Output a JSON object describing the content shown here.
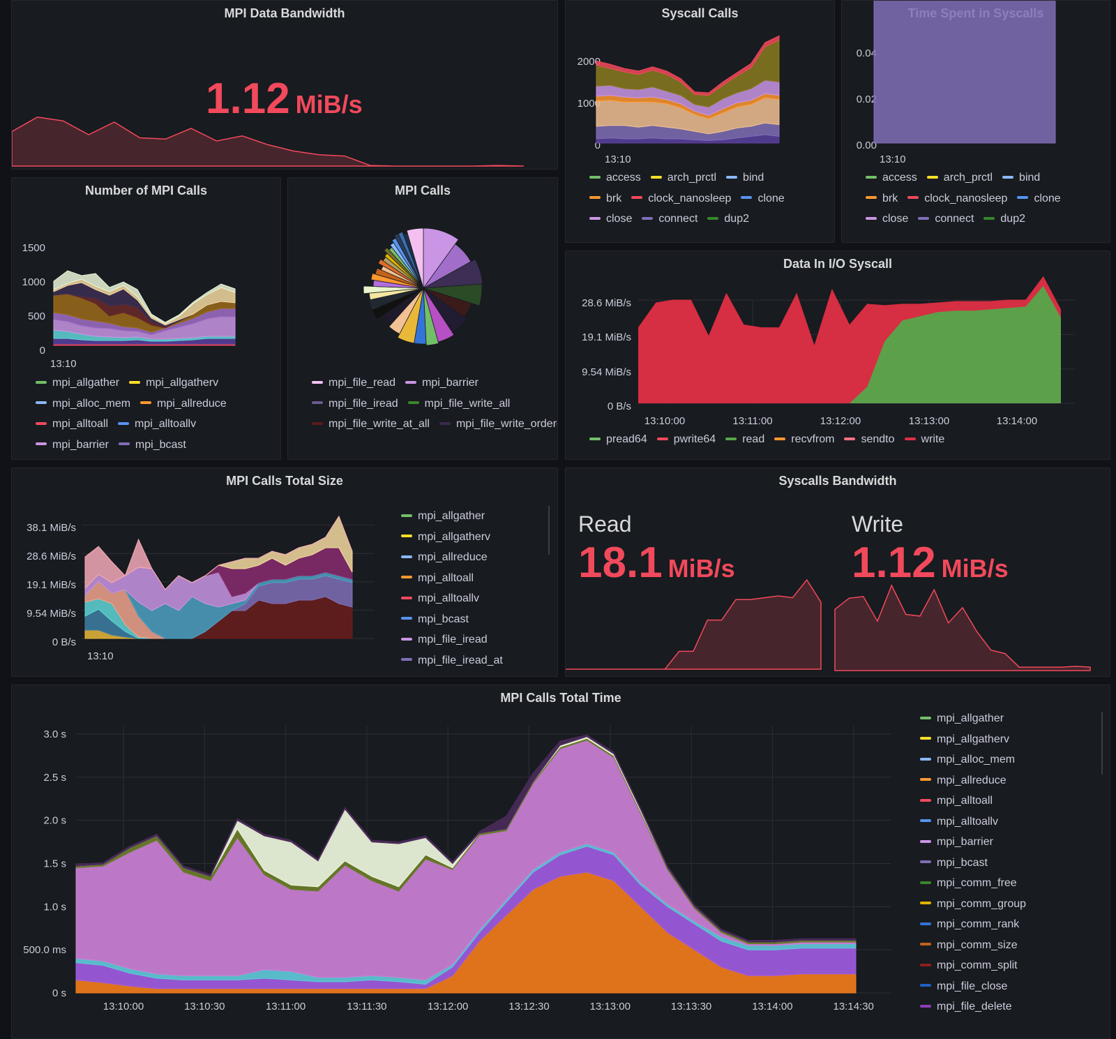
{
  "colors": {
    "red": "#f2495c",
    "green": "#73bf69",
    "yellow": "#fade2a",
    "lightblue": "#8ab8ff",
    "orange": "#ff9830",
    "blue": "#5794f2",
    "purple": "#ca95e5",
    "gray_purple": "#806eb7"
  },
  "mpi_bandwidth": {
    "title": "MPI Data Bandwidth",
    "value": "1.12",
    "unit": "MiB/s",
    "spark": [
      0.55,
      0.78,
      0.72,
      0.5,
      0.7,
      0.45,
      0.43,
      0.6,
      0.4,
      0.48,
      0.34,
      0.24,
      0.18,
      0.16,
      0.01,
      0.0,
      0.0,
      0.0,
      0.0,
      0.01,
      0.0
    ]
  },
  "syscall_calls": {
    "title": "Syscall Calls",
    "y_ticks": [
      "2000",
      "1000",
      "0"
    ],
    "x_tick": "13:10",
    "legend": [
      {
        "label": "access",
        "color": "#73bf69"
      },
      {
        "label": "arch_prctl",
        "color": "#fade2a"
      },
      {
        "label": "bind",
        "color": "#8ab8ff"
      },
      {
        "label": "brk",
        "color": "#ff9830"
      },
      {
        "label": "clock_nanosleep",
        "color": "#f2495c"
      },
      {
        "label": "clone",
        "color": "#5794f2"
      },
      {
        "label": "close",
        "color": "#ca95e5"
      },
      {
        "label": "connect",
        "color": "#806eb7"
      },
      {
        "label": "dup2",
        "color": "#37872d"
      }
    ]
  },
  "time_syscalls": {
    "title": "Time Spent in Syscalls",
    "y_ticks": [
      "0.04",
      "0.02",
      "0.00"
    ],
    "x_tick": "13:10",
    "legend": [
      {
        "label": "access",
        "color": "#73bf69"
      },
      {
        "label": "arch_prctl",
        "color": "#fade2a"
      },
      {
        "label": "bind",
        "color": "#8ab8ff"
      },
      {
        "label": "brk",
        "color": "#ff9830"
      },
      {
        "label": "clock_nanosleep",
        "color": "#f2495c"
      },
      {
        "label": "clone",
        "color": "#5794f2"
      },
      {
        "label": "close",
        "color": "#ca95e5"
      },
      {
        "label": "connect",
        "color": "#806eb7"
      },
      {
        "label": "dup2",
        "color": "#37872d"
      }
    ]
  },
  "num_mpi_calls": {
    "title": "Number of MPI Calls",
    "y_ticks": [
      "1500",
      "1000",
      "500",
      "0"
    ],
    "x_tick": "13:10",
    "legend": [
      {
        "label": "mpi_allgather",
        "color": "#73bf69"
      },
      {
        "label": "mpi_allgatherv",
        "color": "#fade2a"
      },
      {
        "label": "mpi_alloc_mem",
        "color": "#8ab8ff"
      },
      {
        "label": "mpi_allreduce",
        "color": "#ff9830"
      },
      {
        "label": "mpi_alltoall",
        "color": "#f2495c"
      },
      {
        "label": "mpi_alltoallv",
        "color": "#5794f2"
      },
      {
        "label": "mpi_barrier",
        "color": "#ca95e5"
      },
      {
        "label": "mpi_bcast",
        "color": "#806eb7"
      }
    ]
  },
  "mpi_calls_pie": {
    "title": "MPI Calls",
    "legend": [
      {
        "label": "mpi_file_read",
        "color": "#f3c0f0"
      },
      {
        "label": "mpi_barrier",
        "color": "#ca95e5"
      },
      {
        "label": "mpi_file_iread",
        "color": "#6e5a8e"
      },
      {
        "label": "mpi_file_write_all",
        "color": "#37872d"
      },
      {
        "label": "mpi_file_write_at_all",
        "color": "#5c1b1b"
      },
      {
        "label": "mpi_file_write_ordered",
        "color": "#3b2a4d"
      }
    ]
  },
  "io_syscall": {
    "title": "Data In I/O Syscall",
    "y_ticks": [
      "28.6 MiB/s",
      "19.1 MiB/s",
      "9.54 MiB/s",
      "0 B/s"
    ],
    "x_ticks": [
      "13:10:00",
      "13:11:00",
      "13:12:00",
      "13:13:00",
      "13:14:00"
    ],
    "legend": [
      {
        "label": "pread64",
        "color": "#73bf69"
      },
      {
        "label": "pwrite64",
        "color": "#f2495c"
      },
      {
        "label": "read",
        "color": "#56a64b"
      },
      {
        "label": "recvfrom",
        "color": "#ff9830"
      },
      {
        "label": "sendto",
        "color": "#ff7383"
      },
      {
        "label": "write",
        "color": "#e02f44"
      }
    ]
  },
  "mpi_total_size": {
    "title": "MPI Calls Total Size",
    "y_ticks": [
      "38.1 MiB/s",
      "28.6 MiB/s",
      "19.1 MiB/s",
      "9.54 MiB/s",
      "0 B/s"
    ],
    "x_tick": "13:10",
    "legend": [
      {
        "label": "mpi_allgather",
        "color": "#73bf69"
      },
      {
        "label": "mpi_allgatherv",
        "color": "#fade2a"
      },
      {
        "label": "mpi_allreduce",
        "color": "#8ab8ff"
      },
      {
        "label": "mpi_alltoall",
        "color": "#ff9830"
      },
      {
        "label": "mpi_alltoallv",
        "color": "#f2495c"
      },
      {
        "label": "mpi_bcast",
        "color": "#5794f2"
      },
      {
        "label": "mpi_file_iread",
        "color": "#ca95e5"
      },
      {
        "label": "mpi_file_iread_at",
        "color": "#806eb7"
      }
    ]
  },
  "syscalls_bandwidth": {
    "title": "Syscalls Bandwidth",
    "read": {
      "label": "Read",
      "value": "18.1",
      "unit": "MiB/s",
      "spark": [
        0.0,
        0.0,
        0.0,
        0.0,
        0.0,
        0.0,
        0.0,
        0.0,
        0.2,
        0.2,
        0.55,
        0.55,
        0.78,
        0.78,
        0.8,
        0.82,
        0.8,
        1.0,
        0.75
      ]
    },
    "write": {
      "label": "Write",
      "value": "1.12",
      "unit": "MiB/s",
      "spark": [
        0.72,
        0.85,
        0.87,
        0.58,
        1.0,
        0.66,
        0.64,
        0.95,
        0.56,
        0.74,
        0.46,
        0.24,
        0.2,
        0.04,
        0.04,
        0.04,
        0.04,
        0.05,
        0.04
      ]
    }
  },
  "mpi_total_time": {
    "title": "MPI Calls Total Time",
    "y_ticks": [
      "3.0 s",
      "2.5 s",
      "2.0 s",
      "1.5 s",
      "1.0 s",
      "500.0 ms",
      "0 s"
    ],
    "x_ticks": [
      "13:10:00",
      "13:10:30",
      "13:11:00",
      "13:11:30",
      "13:12:00",
      "13:12:30",
      "13:13:00",
      "13:13:30",
      "13:14:00",
      "13:14:30"
    ],
    "legend": [
      {
        "label": "mpi_allgather",
        "color": "#73bf69"
      },
      {
        "label": "mpi_allgatherv",
        "color": "#fade2a"
      },
      {
        "label": "mpi_alloc_mem",
        "color": "#8ab8ff"
      },
      {
        "label": "mpi_allreduce",
        "color": "#ff9830"
      },
      {
        "label": "mpi_alltoall",
        "color": "#f2495c"
      },
      {
        "label": "mpi_alltoallv",
        "color": "#5794f2"
      },
      {
        "label": "mpi_barrier",
        "color": "#ca95e5"
      },
      {
        "label": "mpi_bcast",
        "color": "#806eb7"
      },
      {
        "label": "mpi_comm_free",
        "color": "#37872d"
      },
      {
        "label": "mpi_comm_group",
        "color": "#e0b400"
      },
      {
        "label": "mpi_comm_rank",
        "color": "#3274d9"
      },
      {
        "label": "mpi_comm_size",
        "color": "#c4621a"
      },
      {
        "label": "mpi_comm_split",
        "color": "#8f1f1f"
      },
      {
        "label": "mpi_file_close",
        "color": "#1f60c4"
      },
      {
        "label": "mpi_file_delete",
        "color": "#8f3bb8"
      }
    ],
    "chart_data": {
      "type": "area",
      "x": [
        "13:09:45",
        "13:09:55",
        "13:10:05",
        "13:10:15",
        "13:10:25",
        "13:10:35",
        "13:10:45",
        "13:10:55",
        "13:11:05",
        "13:11:15",
        "13:11:25",
        "13:11:35",
        "13:11:45",
        "13:11:55",
        "13:12:05",
        "13:12:15",
        "13:12:25",
        "13:12:35",
        "13:12:45",
        "13:12:55",
        "13:13:05",
        "13:13:15",
        "13:13:25",
        "13:13:35",
        "13:13:45",
        "13:13:55",
        "13:14:05",
        "13:14:15",
        "13:14:25",
        "13:14:30"
      ],
      "series": [
        {
          "name": "mpi_allreduce",
          "values": [
            0.15,
            0.12,
            0.08,
            0.05,
            0.05,
            0.05,
            0.05,
            0.05,
            0.05,
            0.05,
            0.05,
            0.05,
            0.05,
            0.05,
            0.2,
            0.6,
            0.9,
            1.2,
            1.35,
            1.4,
            1.3,
            1.0,
            0.7,
            0.5,
            0.3,
            0.2,
            0.2,
            0.22,
            0.22,
            0.22
          ]
        },
        {
          "name": "mpi_bcast",
          "values": [
            0.2,
            0.2,
            0.15,
            0.12,
            0.1,
            0.1,
            0.1,
            0.12,
            0.1,
            0.08,
            0.08,
            0.1,
            0.08,
            0.05,
            0.1,
            0.1,
            0.15,
            0.2,
            0.25,
            0.3,
            0.3,
            0.25,
            0.3,
            0.3,
            0.3,
            0.3,
            0.3,
            0.3,
            0.3,
            0.3
          ]
        },
        {
          "name": "mpi_alloc_mem",
          "values": [
            0.05,
            0.05,
            0.05,
            0.05,
            0.05,
            0.05,
            0.05,
            0.1,
            0.1,
            0.05,
            0.05,
            0.05,
            0.05,
            0.05,
            0.03,
            0.03,
            0.03,
            0.03,
            0.03,
            0.03,
            0.03,
            0.03,
            0.03,
            0.03,
            0.05,
            0.05,
            0.05,
            0.05,
            0.05,
            0.05
          ]
        },
        {
          "name": "mpi_barrier",
          "values": [
            1.05,
            1.1,
            1.35,
            1.55,
            1.2,
            1.1,
            1.6,
            1.1,
            0.95,
            1.0,
            1.3,
            1.1,
            1.0,
            1.4,
            1.1,
            1.1,
            0.8,
            1.0,
            1.2,
            1.2,
            1.1,
            0.8,
            0.4,
            0.15,
            0.05,
            0.02,
            0.02,
            0.02,
            0.02,
            0.02
          ]
        },
        {
          "name": "mpi_allgather",
          "values": [
            0.02,
            0.02,
            0.05,
            0.05,
            0.05,
            0.05,
            0.1,
            0.05,
            0.05,
            0.05,
            0.05,
            0.05,
            0.05,
            0.05,
            0.02,
            0.02,
            0.02,
            0.02,
            0.02,
            0.02,
            0.02,
            0.02,
            0.02,
            0.02,
            0.02,
            0.02,
            0.02,
            0.02,
            0.02,
            0.02
          ]
        },
        {
          "name": "mpi_comm_free",
          "values": [
            0.0,
            0.0,
            0.0,
            0.0,
            0.0,
            0.0,
            0.1,
            0.4,
            0.5,
            0.3,
            0.6,
            0.4,
            0.5,
            0.2,
            0.05,
            0.0,
            0.0,
            0.0,
            0.02,
            0.02,
            0.02,
            0.02,
            0.0,
            0.0,
            0.0,
            0.0,
            0.0,
            0.0,
            0.0,
            0.0
          ]
        },
        {
          "name": "mpi_file_delete",
          "values": [
            0.02,
            0.02,
            0.02,
            0.02,
            0.02,
            0.02,
            0.02,
            0.02,
            0.02,
            0.02,
            0.02,
            0.02,
            0.02,
            0.02,
            0.02,
            0.02,
            0.15,
            0.1,
            0.05,
            0.02,
            0.02,
            0.02,
            0.02,
            0.02,
            0.02,
            0.02,
            0.02,
            0.02,
            0.02,
            0.02
          ]
        }
      ],
      "ylim": [
        0,
        3.0
      ]
    }
  }
}
